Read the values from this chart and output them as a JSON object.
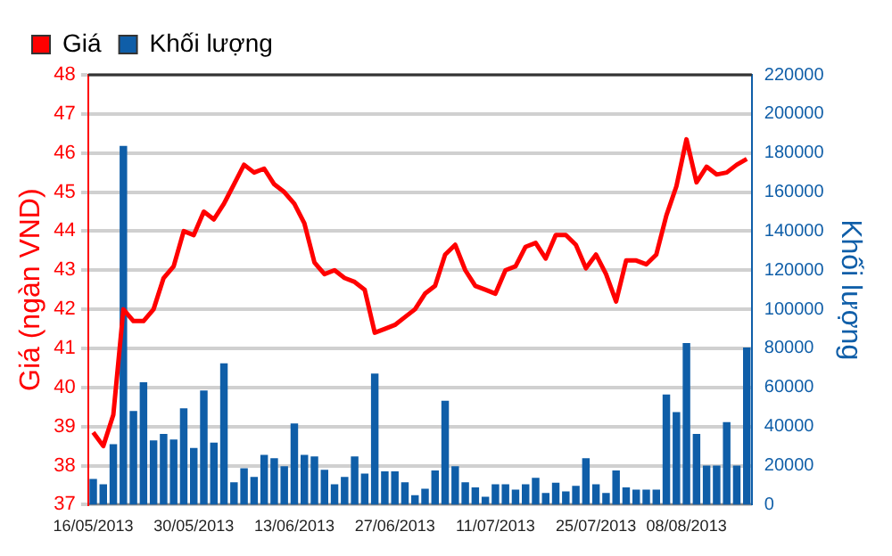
{
  "chart_data": {
    "type": "line",
    "xlabel": null,
    "ylabel": "Giá (ngàn VND)",
    "y2label": "Khối lượng",
    "categories": [
      "16/05/2013",
      null,
      null,
      null,
      null,
      null,
      null,
      null,
      null,
      null,
      "30/05/2013",
      null,
      null,
      null,
      null,
      null,
      null,
      null,
      null,
      null,
      "13/06/2013",
      null,
      null,
      null,
      null,
      null,
      null,
      null,
      null,
      null,
      "27/06/2013",
      null,
      null,
      null,
      null,
      null,
      null,
      null,
      null,
      null,
      "11/07/2013",
      null,
      null,
      null,
      null,
      null,
      null,
      null,
      null,
      null,
      "25/07/2013",
      null,
      null,
      null,
      null,
      null,
      null,
      null,
      null,
      "08/08/2013",
      null,
      null,
      null,
      null,
      null,
      null
    ],
    "series": [
      {
        "name": "Giá",
        "color": "#ff0000",
        "values": [
          38.85,
          38.5,
          39.3,
          42.0,
          41.7,
          41.7,
          42.0,
          42.8,
          43.1,
          44.0,
          43.9,
          44.5,
          44.3,
          44.7,
          45.2,
          45.7,
          45.5,
          45.6,
          45.2,
          45.0,
          44.7,
          44.2,
          43.2,
          42.9,
          43.0,
          42.8,
          42.7,
          42.5,
          41.4,
          41.5,
          41.6,
          41.8,
          42.0,
          42.4,
          42.6,
          43.4,
          43.65,
          43.0,
          42.6,
          42.5,
          42.4,
          43.0,
          43.1,
          43.6,
          43.7,
          43.3,
          43.9,
          43.9,
          43.65,
          43.05,
          43.4,
          42.9,
          42.2,
          43.25,
          43.25,
          43.15,
          43.4,
          44.4,
          45.15,
          46.35,
          45.25,
          45.65,
          45.45,
          45.5,
          45.7,
          45.85
        ]
      },
      {
        "name": "Khối lượng",
        "type": "bar",
        "axis": "y2",
        "color": "#0f5ea8",
        "values": [
          13200,
          10400,
          31000,
          183600,
          48000,
          62700,
          32900,
          36200,
          33400,
          49300,
          29000,
          58400,
          31800,
          72300,
          11500,
          18600,
          14200,
          25500,
          23800,
          19700,
          41600,
          25500,
          24700,
          17800,
          10400,
          14200,
          24700,
          15900,
          67100,
          17000,
          17000,
          11500,
          4900,
          8200,
          17500,
          53200,
          19700,
          11500,
          8800,
          4100,
          10400,
          10400,
          7700,
          10400,
          13700,
          6000,
          11200,
          6800,
          9600,
          23800,
          10400,
          6000,
          17500,
          8800,
          7700,
          7700,
          7700,
          56400,
          47400,
          82700,
          36200,
          20000,
          20000,
          42200,
          20000,
          80500
        ]
      }
    ],
    "ylim": [
      37,
      48
    ],
    "yticks": [
      37,
      38,
      39,
      40,
      41,
      42,
      43,
      44,
      45,
      46,
      47,
      48
    ],
    "y2lim": [
      0,
      220000
    ],
    "y2ticks": [
      0,
      20000,
      40000,
      60000,
      80000,
      100000,
      120000,
      140000,
      160000,
      180000,
      200000,
      220000
    ],
    "grid": "y",
    "legend": "top left",
    "marker": "none",
    "line_style": "solid"
  }
}
